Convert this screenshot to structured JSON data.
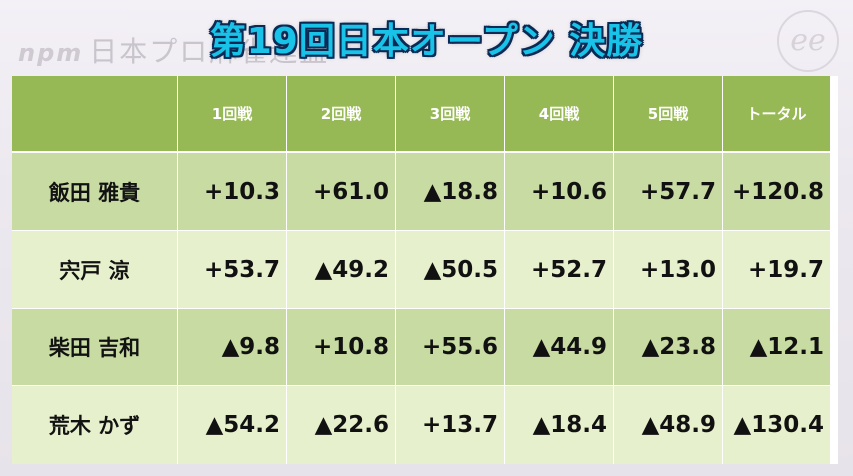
{
  "watermark": {
    "brand": "npm",
    "text": "日本プロ麻雀連盟",
    "corner_mark": "ee"
  },
  "title": "第19回日本オープン 決勝",
  "headers": [
    "1回戦",
    "2回戦",
    "3回戦",
    "4回戦",
    "5回戦",
    "トータル"
  ],
  "players": [
    {
      "name": "飯田 雅貴",
      "scores": [
        "+10.3",
        "+61.0",
        "▲18.8",
        "+10.6",
        "+57.7",
        "+120.8"
      ]
    },
    {
      "name": "宍戸 涼",
      "scores": [
        "+53.7",
        "▲49.2",
        "▲50.5",
        "+52.7",
        "+13.0",
        "+19.7"
      ]
    },
    {
      "name": "柴田 吉和",
      "scores": [
        "▲9.8",
        "+10.8",
        "+55.6",
        "▲44.9",
        "▲23.8",
        "▲12.1"
      ]
    },
    {
      "name": "荒木 かず",
      "scores": [
        "▲54.2",
        "▲22.6",
        "+13.7",
        "▲18.4",
        "▲48.9",
        "▲130.4"
      ]
    }
  ],
  "colors": {
    "title": "#19c3e8",
    "title_outline": "#0a2a55",
    "header_bg": "#96b955",
    "row_dark": "#c8dba2",
    "row_light": "#e7f0cd"
  }
}
